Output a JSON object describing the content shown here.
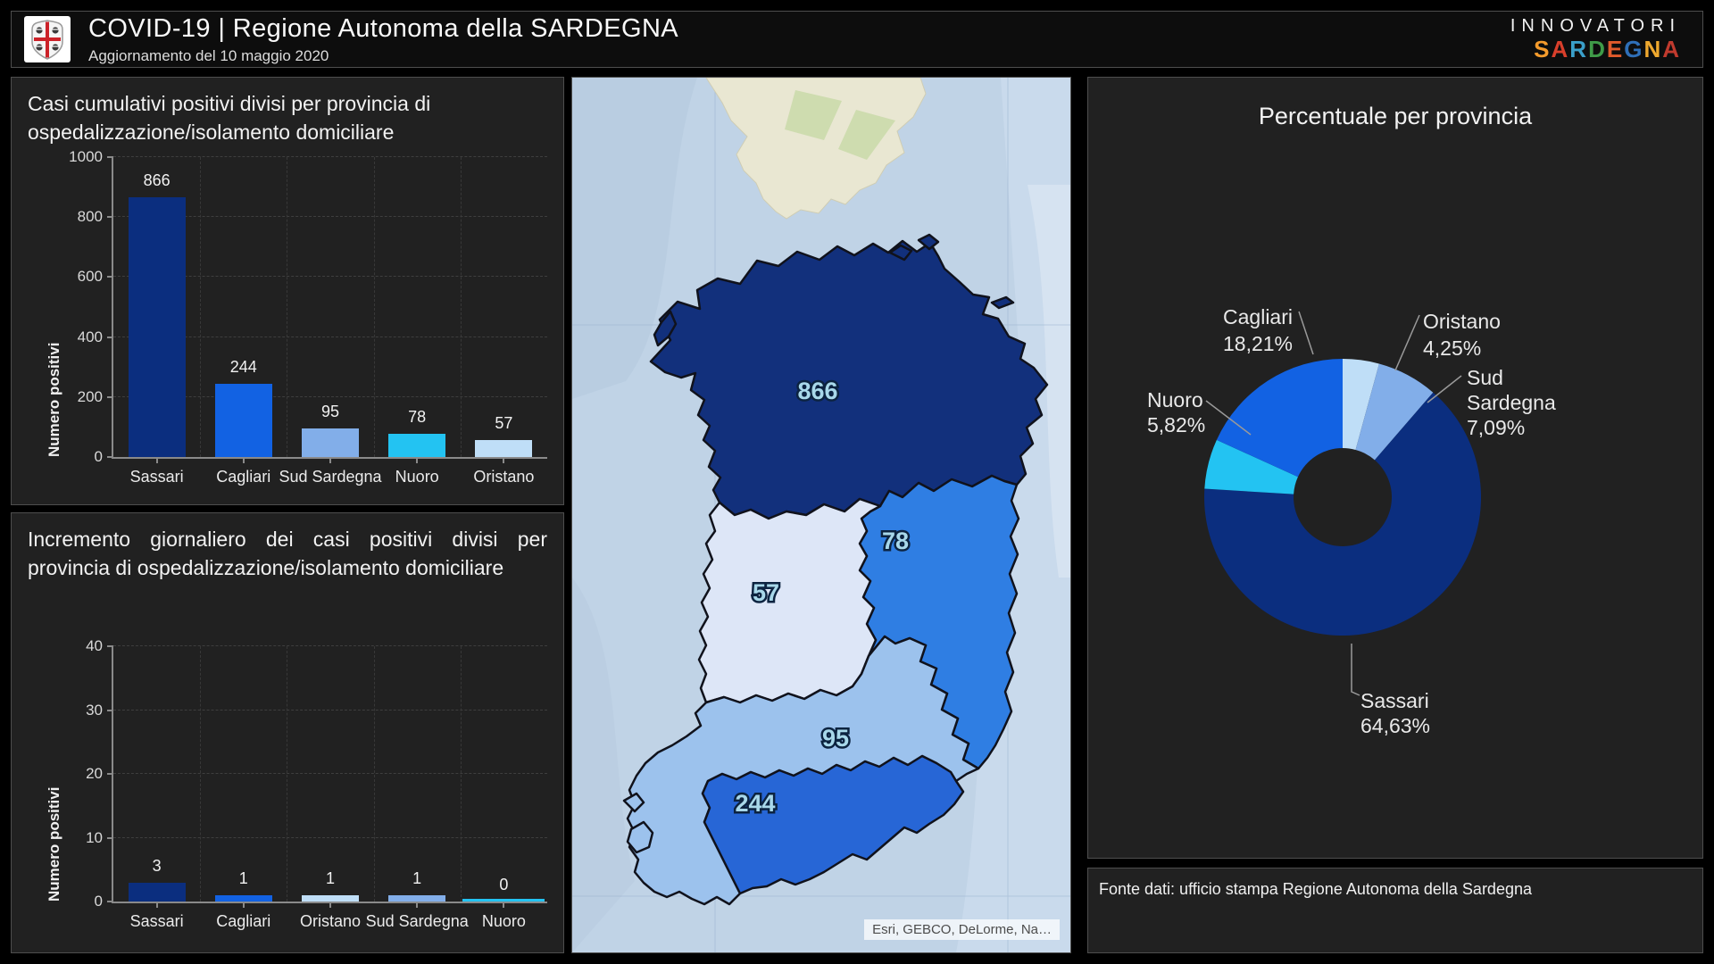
{
  "header": {
    "title": "COVID-19 | Regione Autonoma della SARDEGNA",
    "subtitle": "Aggiornamento del 10 maggio 2020",
    "brand_line1": "INNOVATORI",
    "brand_letters": [
      {
        "ch": "S",
        "color": "#f49b2c"
      },
      {
        "ch": "A",
        "color": "#d93f2b"
      },
      {
        "ch": "R",
        "color": "#3a9fc9"
      },
      {
        "ch": "D",
        "color": "#3f9b48"
      },
      {
        "ch": "E",
        "color": "#e05a2b"
      },
      {
        "ch": "G",
        "color": "#2f6fb8"
      },
      {
        "ch": "N",
        "color": "#eea82e"
      },
      {
        "ch": "A",
        "color": "#c03a2e"
      }
    ]
  },
  "chart_data": [
    {
      "id": "casi_cumulativi",
      "type": "bar",
      "title": "Casi cumulativi positivi divisi per provincia di ospedalizzazione/isolamento domiciliare",
      "ylabel": "Numero positivi",
      "ylim": [
        0,
        1000
      ],
      "yticks": [
        0,
        200,
        400,
        600,
        800,
        1000
      ],
      "categories": [
        "Sassari",
        "Cagliari",
        "Sud Sardegna",
        "Nuoro",
        "Oristano"
      ],
      "values": [
        866,
        244,
        95,
        78,
        57
      ],
      "colors": [
        "#0b2e7f",
        "#1262e3",
        "#82aee9",
        "#23c3f2",
        "#bfdef7"
      ],
      "grid": "dashed"
    },
    {
      "id": "incremento_giornaliero",
      "type": "bar",
      "title": "Incremento giornaliero dei casi positivi divisi per provincia di ospedalizzazione/isolamento domiciliare",
      "ylabel": "Numero positivi",
      "ylim": [
        0,
        40
      ],
      "yticks": [
        0,
        10,
        20,
        30,
        40
      ],
      "categories": [
        "Sassari",
        "Cagliari",
        "Oristano",
        "Sud Sardegna",
        "Nuoro"
      ],
      "values": [
        3,
        1,
        1,
        1,
        0
      ],
      "colors": [
        "#0b2e7f",
        "#1262e3",
        "#bfdef7",
        "#82aee9",
        "#23c3f2"
      ],
      "grid": "dashed"
    },
    {
      "id": "percentuale_provincia",
      "type": "pie",
      "donut": true,
      "title": "Percentuale per provincia",
      "slices_clockwise_from_top": [
        {
          "name": "Oristano",
          "pct": 4.25,
          "color": "#bfdef7"
        },
        {
          "name": "Sud Sardegna",
          "pct": 7.09,
          "color": "#82aee9"
        },
        {
          "name": "Sassari",
          "pct": 64.63,
          "color": "#0b2e7f"
        },
        {
          "name": "Nuoro",
          "pct": 5.82,
          "color": "#23c3f2"
        },
        {
          "name": "Cagliari",
          "pct": 18.21,
          "color": "#1262e3"
        }
      ],
      "callouts": [
        {
          "name": "Cagliari",
          "lines": [
            "Cagliari",
            "18,21%"
          ]
        },
        {
          "name": "Oristano",
          "lines": [
            "Oristano",
            "4,25%"
          ]
        },
        {
          "name": "Sud Sardegna",
          "lines": [
            "Sud",
            "Sardegna",
            "7,09%"
          ]
        },
        {
          "name": "Nuoro",
          "lines": [
            "Nuoro",
            "5,82%"
          ]
        },
        {
          "name": "Sassari",
          "lines": [
            "Sassari",
            "64,63%"
          ]
        }
      ]
    }
  ],
  "map": {
    "labels": [
      {
        "province": "Sassari",
        "value": "866"
      },
      {
        "province": "Nuoro",
        "value": "78"
      },
      {
        "province": "Oristano",
        "value": "57"
      },
      {
        "province": "Sud Sardegna",
        "value": "95"
      },
      {
        "province": "Cagliari",
        "value": "244"
      }
    ],
    "attribution": "Esri, GEBCO, DeLorme, Na…"
  },
  "footer": {
    "fonte": "Fonte dati: ufficio stampa Regione Autonoma della Sardegna"
  }
}
